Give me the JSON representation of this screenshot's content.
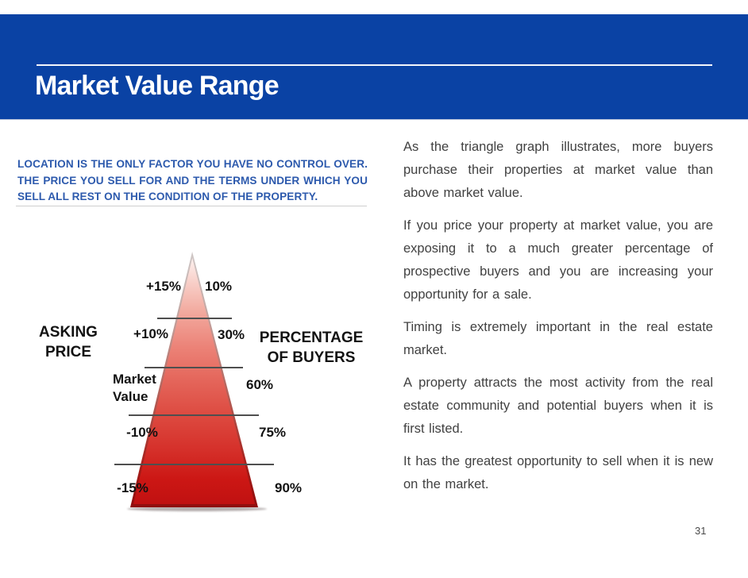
{
  "page": {
    "title": "Market Value Range",
    "page_number": "31"
  },
  "callout": {
    "text": "LOCATION IS THE ONLY FACTOR YOU HAVE NO CONTROL OVER. THE PRICE YOU SELL FOR AND THE TERMS UNDER WHICH YOU SELL ALL REST ON THE CONDITION OF THE PROPERTY."
  },
  "chart_data": {
    "type": "pyramid",
    "title": "Market Value Range pyramid: asking price vs percentage of buyers",
    "left_axis_label": "ASKING PRICE",
    "right_axis_label": "PERCENTAGE OF BUYERS",
    "levels": [
      {
        "asking_price": "+15%",
        "percentage_of_buyers": "10%"
      },
      {
        "asking_price": "+10%",
        "percentage_of_buyers": "30%"
      },
      {
        "asking_price": "Market Value",
        "percentage_of_buyers": "60%"
      },
      {
        "asking_price": "-10%",
        "percentage_of_buyers": "75%"
      },
      {
        "asking_price": "-15%",
        "percentage_of_buyers": "90%"
      }
    ],
    "layout_hints": {
      "pyramid_gradient_top": "#fdf1ef",
      "pyramid_gradient_bottom": "#c01111",
      "gridlines": true
    }
  },
  "body": {
    "paragraphs": [
      "As the triangle graph illustrates, more buyers purchase their properties at market value than above market value.",
      "If you price your property at market value, you are exposing it to a much greater percentage of prospective buyers and you are increasing your opportunity for a sale.",
      "Timing is extremely important in the real estate market.",
      "A property attracts the most activity from the real estate community and potential buyers when it is first listed.",
      "It has the greatest opportunity to sell when it is new on the market."
    ]
  },
  "theme": {
    "header_blue": "#0a42a4",
    "callout_blue": "#2d5aad"
  }
}
